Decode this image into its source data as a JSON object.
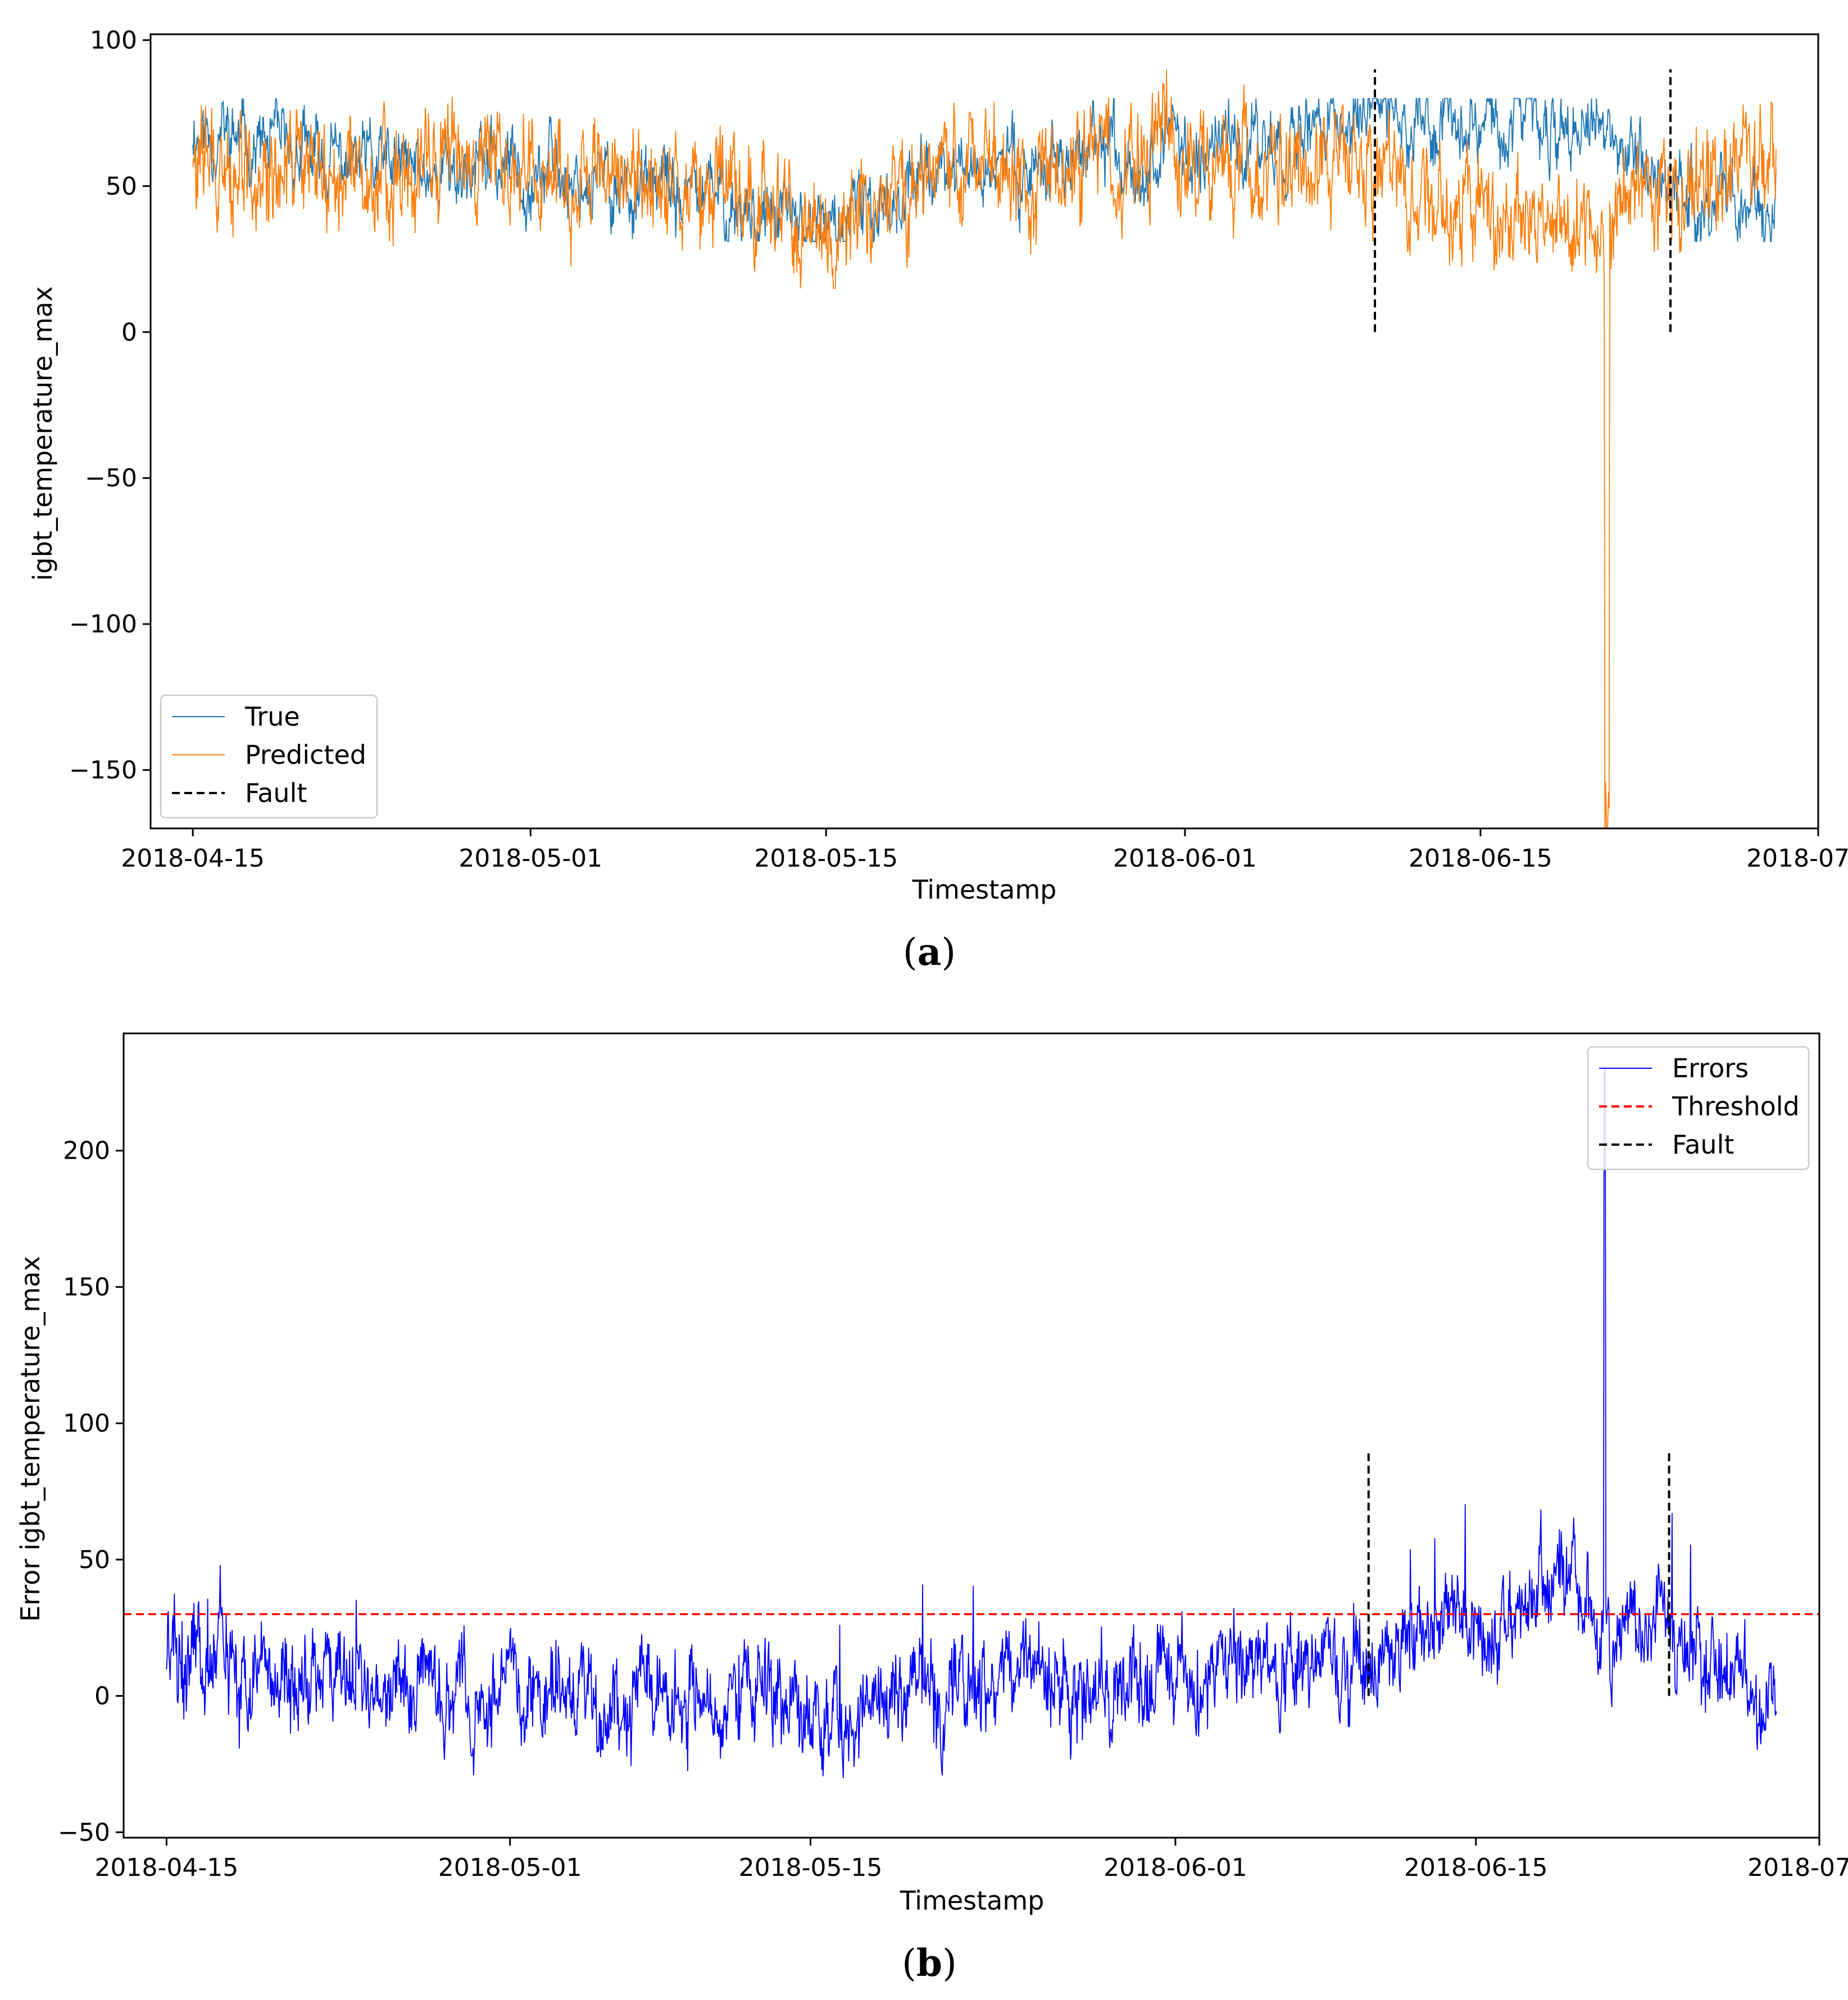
{
  "chart_data": [
    {
      "type": "line",
      "panel": "a",
      "caption_letter": "a",
      "title": "",
      "xlabel": "Timestamp",
      "ylabel": "igbt_temperature_max",
      "xlim": [
        "2018-04-13",
        "2018-07-01"
      ],
      "ylim": [
        -170,
        102
      ],
      "yticks": [
        100,
        50,
        0,
        -50,
        -100,
        -150
      ],
      "ytick_labels": [
        "100",
        "50",
        "0",
        "−50",
        "−100",
        "−150"
      ],
      "xticks": [
        "2018-04-15",
        "2018-05-01",
        "2018-05-15",
        "2018-06-01",
        "2018-06-15",
        "2018-07-01"
      ],
      "xtick_labels": [
        "2018-04-15",
        "2018-05-01",
        "2018-05-15",
        "2018-06-01",
        "2018-06-15",
        "2018-07-01"
      ],
      "legend_position": "lower-left",
      "series": [
        {
          "name": "True",
          "color": "#1f77b4",
          "style": "solid",
          "x": [
            "2018-04-15",
            "2018-04-20",
            "2018-04-25",
            "2018-04-30",
            "2018-05-05",
            "2018-05-10",
            "2018-05-15",
            "2018-05-20",
            "2018-05-25",
            "2018-05-30",
            "2018-06-04",
            "2018-06-09",
            "2018-06-14",
            "2018-06-19",
            "2018-06-24",
            "2018-06-29"
          ],
          "values": [
            70,
            60,
            55,
            58,
            50,
            45,
            33,
            55,
            58,
            62,
            65,
            72,
            74,
            72,
            52,
            45
          ]
        },
        {
          "name": "Predicted",
          "color": "#ff7f0e",
          "style": "solid",
          "x": [
            "2018-04-15",
            "2018-04-20",
            "2018-04-25",
            "2018-04-30",
            "2018-05-05",
            "2018-05-10",
            "2018-05-15",
            "2018-05-20",
            "2018-05-25",
            "2018-05-30",
            "2018-06-04",
            "2018-06-09",
            "2018-06-14",
            "2018-06-19",
            "2018-06-21",
            "2018-06-24",
            "2018-06-29"
          ],
          "values": [
            55,
            58,
            55,
            60,
            50,
            48,
            35,
            55,
            55,
            60,
            58,
            55,
            45,
            35,
            -160,
            50,
            60
          ]
        },
        {
          "name": "Fault",
          "color": "#000000",
          "style": "dashed",
          "x": [
            "2018-06-10",
            "2018-06-24"
          ],
          "range": [
            0,
            90
          ]
        }
      ]
    },
    {
      "type": "line",
      "panel": "b",
      "caption_letter": "b",
      "title": "",
      "xlabel": "Timestamp",
      "ylabel": "Error igbt_temperature_max",
      "xlim": [
        "2018-04-13",
        "2018-07-01"
      ],
      "ylim": [
        -52,
        243
      ],
      "yticks": [
        200,
        150,
        100,
        50,
        0,
        -50
      ],
      "ytick_labels": [
        "200",
        "150",
        "100",
        "50",
        "0",
        "−50"
      ],
      "xticks": [
        "2018-04-15",
        "2018-05-01",
        "2018-05-15",
        "2018-06-01",
        "2018-06-15",
        "2018-07-01"
      ],
      "xtick_labels": [
        "2018-04-15",
        "2018-05-01",
        "2018-05-15",
        "2018-06-01",
        "2018-06-15",
        "2018-07-01"
      ],
      "legend_position": "top-right",
      "series": [
        {
          "name": "Errors",
          "color": "#0000ff",
          "style": "solid",
          "x": [
            "2018-04-15",
            "2018-04-20",
            "2018-04-25",
            "2018-04-30",
            "2018-05-05",
            "2018-05-10",
            "2018-05-15",
            "2018-05-20",
            "2018-05-25",
            "2018-05-30",
            "2018-06-04",
            "2018-06-09",
            "2018-06-14",
            "2018-06-19",
            "2018-06-21",
            "2018-06-24",
            "2018-06-29"
          ],
          "values": [
            15,
            5,
            5,
            -2,
            0,
            -3,
            -5,
            0,
            8,
            0,
            10,
            8,
            25,
            35,
            231,
            20,
            -10
          ]
        },
        {
          "name": "Threshold",
          "color": "#ff0000",
          "style": "dashed",
          "value": 30
        },
        {
          "name": "Fault",
          "color": "#000000",
          "style": "dashed",
          "x": [
            "2018-06-10",
            "2018-06-24"
          ],
          "range": [
            0,
            90
          ]
        }
      ]
    }
  ]
}
